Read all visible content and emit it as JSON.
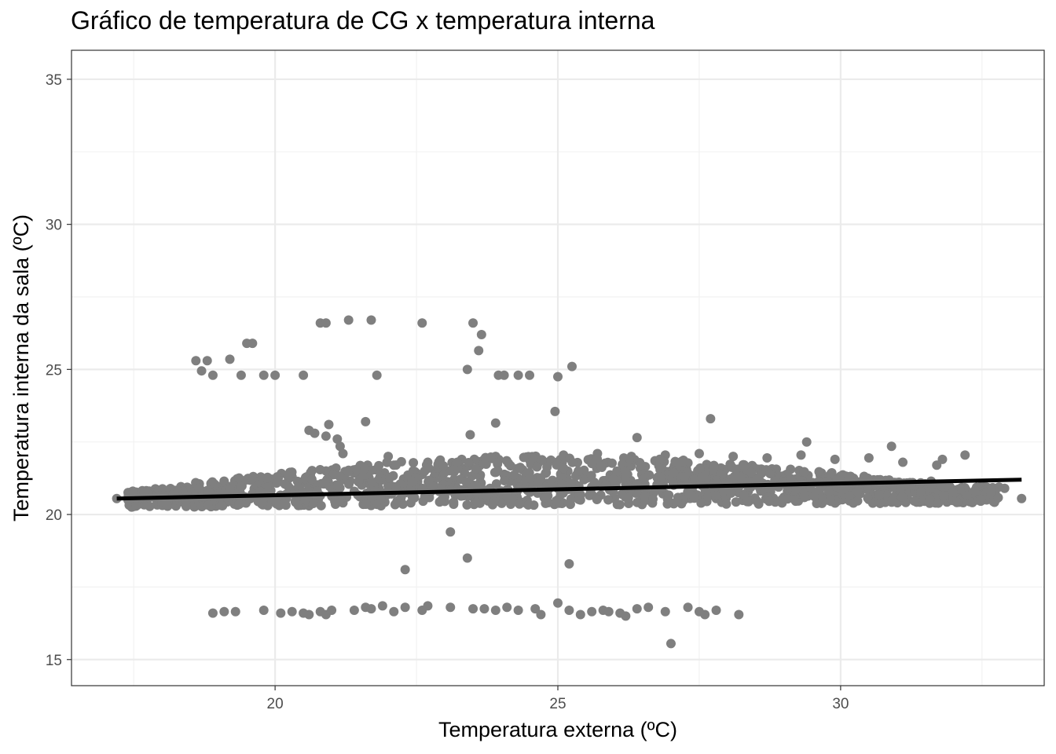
{
  "chart_data": {
    "type": "scatter",
    "title": "Gráfico de temperatura de CG x temperatura interna",
    "xlabel": "Temperatura externa (ºC)",
    "ylabel": "Temperatura interna da sala (ºC)",
    "xlim": [
      16.4,
      33.6
    ],
    "ylim": [
      14.1,
      36.0
    ],
    "x_ticks": [
      20,
      25,
      30
    ],
    "y_ticks": [
      15,
      20,
      25,
      30,
      35
    ],
    "grid": true,
    "legend": "none",
    "point_color": "#7f7f7f",
    "line_color": "#000000",
    "trend_line": {
      "x": [
        17.2,
        33.2
      ],
      "y": [
        20.55,
        21.2
      ]
    },
    "series": [
      {
        "x": [
          18.6,
          18.8,
          18.7,
          18.9,
          19.2,
          19.4,
          19.5,
          19.6,
          19.8,
          20.0,
          20.5,
          20.8,
          20.9,
          21.3,
          21.7,
          21.8,
          22.6,
          23.5,
          23.6,
          23.65,
          23.4,
          23.95,
          24.05,
          24.3,
          24.5,
          25.0,
          25.25,
          24.95,
          21.6,
          23.9,
          27.7,
          22.3,
          23.1,
          23.4,
          25.2,
          20.6,
          20.7,
          20.9,
          20.95,
          21.1,
          21.15,
          21.2,
          22.0,
          23.45,
          26.4,
          29.4,
          30.9,
          31.8,
          32.2,
          33.2,
          17.2,
          17.4,
          17.8,
          18.2,
          18.6,
          19.0,
          19.3,
          19.6,
          19.9,
          20.2,
          20.5,
          20.8,
          21.1,
          21.4,
          21.7,
          22.0,
          22.3,
          22.6,
          22.9,
          23.2,
          23.5,
          23.8,
          24.1,
          24.4,
          24.7,
          25.0,
          25.3,
          25.6,
          25.9,
          26.2,
          26.5,
          26.8,
          27.1,
          27.4,
          27.7,
          28.0,
          28.3,
          28.6,
          28.9,
          29.2,
          29.5,
          29.8,
          30.1,
          30.4,
          30.7,
          31.0,
          31.3,
          31.6,
          31.9,
          32.2,
          32.5,
          32.9,
          19.4,
          20.1,
          20.6,
          21.2,
          21.8,
          22.4,
          23.0,
          23.6,
          24.2,
          24.8,
          25.4,
          26.0,
          26.6,
          27.2,
          27.8,
          28.4,
          29.0,
          29.6,
          30.2,
          30.8,
          31.4,
          32.0,
          20.3,
          20.9,
          21.5,
          22.1,
          22.7,
          23.3,
          23.9,
          24.5,
          25.1,
          25.7,
          26.3,
          26.9,
          27.5,
          28.1,
          28.7,
          29.3,
          29.9,
          30.5,
          31.1,
          31.7,
          18.9,
          19.1,
          19.3,
          19.8,
          20.1,
          20.3,
          20.5,
          20.6,
          20.8,
          20.9,
          21.0,
          21.4,
          21.6,
          21.7,
          21.9,
          22.1,
          22.3,
          22.6,
          22.7,
          23.1,
          23.5,
          23.7,
          23.9,
          24.1,
          24.3,
          24.6,
          24.7,
          25.0,
          25.2,
          25.4,
          25.6,
          25.8,
          25.9,
          26.1,
          26.2,
          26.4,
          26.6,
          26.9,
          27.3,
          27.5,
          27.6,
          27.8,
          28.2,
          27.0
        ],
        "y": [
          25.3,
          25.3,
          24.95,
          24.8,
          25.35,
          24.8,
          25.9,
          25.9,
          24.8,
          24.8,
          24.8,
          26.6,
          26.6,
          26.7,
          26.7,
          24.8,
          26.6,
          26.6,
          25.65,
          26.2,
          25.0,
          24.8,
          24.8,
          24.8,
          24.8,
          24.75,
          25.1,
          23.55,
          23.2,
          23.15,
          23.3,
          18.1,
          19.4,
          18.5,
          18.3,
          22.9,
          22.8,
          22.7,
          23.1,
          22.6,
          22.35,
          22.1,
          22.0,
          22.75,
          22.65,
          22.5,
          22.35,
          21.9,
          22.05,
          20.55,
          20.55,
          20.5,
          20.6,
          20.55,
          20.6,
          20.55,
          20.6,
          20.65,
          20.6,
          20.7,
          20.75,
          20.65,
          20.8,
          20.8,
          20.7,
          20.85,
          20.75,
          20.9,
          20.8,
          20.95,
          20.85,
          20.9,
          20.85,
          21.0,
          20.95,
          20.9,
          21.05,
          20.95,
          21.0,
          21.05,
          21.0,
          21.1,
          21.05,
          21.0,
          21.1,
          21.15,
          21.05,
          21.1,
          21.2,
          21.15,
          21.1,
          21.2,
          21.1,
          21.15,
          21.2,
          21.1,
          21.05,
          21.15,
          21.0,
          20.9,
          21.0,
          20.9,
          20.4,
          20.35,
          20.3,
          20.4,
          20.35,
          20.4,
          20.45,
          20.4,
          20.45,
          20.5,
          20.5,
          20.55,
          20.5,
          20.6,
          20.55,
          20.5,
          20.6,
          20.55,
          20.5,
          20.45,
          20.55,
          20.6,
          21.3,
          21.5,
          21.6,
          21.7,
          21.8,
          21.9,
          22.0,
          21.95,
          22.05,
          22.1,
          22.0,
          22.05,
          22.1,
          22.0,
          21.95,
          22.05,
          21.9,
          21.95,
          21.8,
          21.7,
          16.6,
          16.65,
          16.65,
          16.7,
          16.6,
          16.65,
          16.6,
          16.55,
          16.65,
          16.55,
          16.7,
          16.7,
          16.8,
          16.75,
          16.85,
          16.65,
          16.8,
          16.7,
          16.85,
          16.8,
          16.75,
          16.75,
          16.7,
          16.8,
          16.7,
          16.75,
          16.55,
          16.95,
          16.7,
          16.55,
          16.65,
          16.7,
          16.65,
          16.6,
          16.5,
          16.75,
          16.8,
          16.65,
          16.8,
          16.65,
          16.55,
          16.7,
          16.55,
          15.55
        ]
      }
    ]
  }
}
